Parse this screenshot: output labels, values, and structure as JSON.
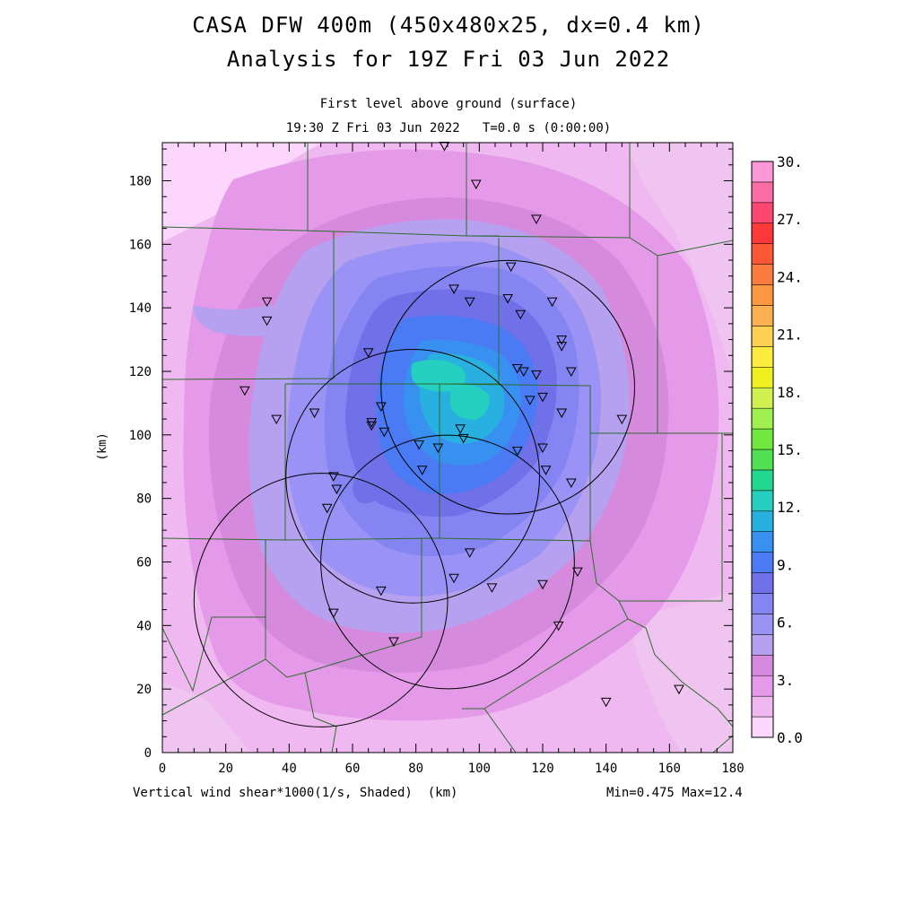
{
  "title": "CASA DFW 400m (450x480x25, dx=0.4 km)",
  "subtitle": "Analysis for 19Z Fri 03 Jun 2022",
  "level": "First level above ground (surface)",
  "valid_time": "19:30 Z Fri 03 Jun 2022   T=0.0 s (0:00:00)",
  "field_label": "Vertical wind shear*1000(1/s, Shaded)  (km)",
  "minmax": "Min=0.475 Max=12.4",
  "y_axis_unit": "(km)",
  "x_ticks": [
    "0",
    "20",
    "40",
    "60",
    "80",
    "100",
    "120",
    "140",
    "160",
    "180"
  ],
  "y_ticks": [
    "0",
    "20",
    "40",
    "60",
    "80",
    "100",
    "120",
    "140",
    "160",
    "180"
  ],
  "x_range_km": [
    0,
    180
  ],
  "y_range_km": [
    0,
    192
  ],
  "colorbar": {
    "labels": [
      "0.0",
      "3.",
      "6.",
      "9.",
      "12.",
      "15.",
      "18.",
      "21.",
      "24.",
      "27.",
      "30."
    ],
    "colors": [
      "#fcd6fc",
      "#f0b8f0",
      "#e49ae8",
      "#d68ade",
      "#b6a0f0",
      "#9a92f4",
      "#8484f2",
      "#7070e8",
      "#4a7af4",
      "#3890f0",
      "#28b0e0",
      "#26d0c0",
      "#22d890",
      "#50e050",
      "#70e840",
      "#a0f050",
      "#d0f050",
      "#f0f020",
      "#fcec40",
      "#fcd050",
      "#fcb050",
      "#fc9840",
      "#fc7c40",
      "#fc5838",
      "#fc3838",
      "#fc4870",
      "#fc6ca4",
      "#fc98d8"
    ]
  },
  "sites": [
    {
      "x": 89,
      "y": 191
    },
    {
      "x": 99,
      "y": 179
    },
    {
      "x": 118,
      "y": 168
    },
    {
      "x": 110,
      "y": 153
    },
    {
      "x": 33,
      "y": 142
    },
    {
      "x": 33,
      "y": 136
    },
    {
      "x": 92,
      "y": 146
    },
    {
      "x": 97,
      "y": 142
    },
    {
      "x": 109,
      "y": 143
    },
    {
      "x": 113,
      "y": 138
    },
    {
      "x": 123,
      "y": 142
    },
    {
      "x": 126,
      "y": 130
    },
    {
      "x": 126,
      "y": 128
    },
    {
      "x": 65,
      "y": 126
    },
    {
      "x": 112,
      "y": 121
    },
    {
      "x": 114,
      "y": 120
    },
    {
      "x": 118,
      "y": 119
    },
    {
      "x": 129,
      "y": 120
    },
    {
      "x": 26,
      "y": 114
    },
    {
      "x": 120,
      "y": 112
    },
    {
      "x": 116,
      "y": 111
    },
    {
      "x": 69,
      "y": 109
    },
    {
      "x": 48,
      "y": 107
    },
    {
      "x": 36,
      "y": 105
    },
    {
      "x": 126,
      "y": 107
    },
    {
      "x": 145,
      "y": 105
    },
    {
      "x": 66,
      "y": 104
    },
    {
      "x": 66,
      "y": 103
    },
    {
      "x": 70,
      "y": 101
    },
    {
      "x": 94,
      "y": 102
    },
    {
      "x": 95,
      "y": 99
    },
    {
      "x": 81,
      "y": 97
    },
    {
      "x": 87,
      "y": 96
    },
    {
      "x": 112,
      "y": 95
    },
    {
      "x": 120,
      "y": 96
    },
    {
      "x": 82,
      "y": 89
    },
    {
      "x": 121,
      "y": 89
    },
    {
      "x": 54,
      "y": 87
    },
    {
      "x": 55,
      "y": 83
    },
    {
      "x": 129,
      "y": 85
    },
    {
      "x": 52,
      "y": 77
    },
    {
      "x": 97,
      "y": 63
    },
    {
      "x": 131,
      "y": 57
    },
    {
      "x": 92,
      "y": 55
    },
    {
      "x": 120,
      "y": 53
    },
    {
      "x": 104,
      "y": 52
    },
    {
      "x": 69,
      "y": 51
    },
    {
      "x": 54,
      "y": 44
    },
    {
      "x": 125,
      "y": 40
    },
    {
      "x": 73,
      "y": 35
    },
    {
      "x": 140,
      "y": 16
    },
    {
      "x": 163,
      "y": 20
    }
  ],
  "radar_rings": [
    {
      "cx": 109,
      "cy": 115,
      "r": 40
    },
    {
      "cx": 79,
      "cy": 87,
      "r": 40
    },
    {
      "cx": 90,
      "cy": 60,
      "r": 40
    },
    {
      "cx": 50,
      "cy": 48,
      "r": 40
    }
  ]
}
